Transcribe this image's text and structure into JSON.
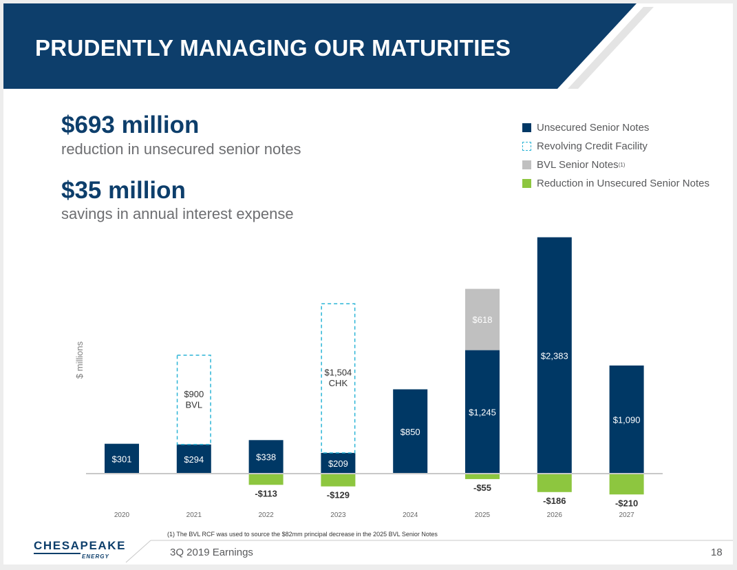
{
  "header": {
    "title": "PRUDENTLY MANAGING OUR MATURITIES"
  },
  "highlights": [
    {
      "value": "$693 million",
      "caption": "reduction in unsecured senior notes"
    },
    {
      "value": "$35 million",
      "caption": "savings in annual interest expense"
    }
  ],
  "legend": [
    {
      "label": "Unsecured Senior Notes",
      "color": "#003865",
      "style": "solid"
    },
    {
      "label": "Revolving Credit Facility",
      "color": "#2ab4d6",
      "style": "dashed"
    },
    {
      "label": "BVL Senior Notes",
      "superscript": "(1)",
      "color": "#c0c0c0",
      "style": "solid"
    },
    {
      "label": "Reduction in Unsecured Senior Notes",
      "color": "#8dc63f",
      "style": "solid"
    }
  ],
  "chart_data": {
    "type": "bar",
    "title": "",
    "ylabel": "$ millions",
    "xlabel": "",
    "ylim": [
      -290,
      2450
    ],
    "categories": [
      "2020",
      "2021",
      "2022",
      "2023",
      "2024",
      "2025",
      "2026",
      "2027"
    ],
    "series": [
      {
        "name": "Unsecured Senior Notes",
        "color": "#003865",
        "values": [
          301,
          294,
          338,
          209,
          850,
          1245,
          2383,
          1090
        ],
        "labels": [
          "$301",
          "$294",
          "$338",
          "$209",
          "$850",
          "$1,245",
          "$2,383",
          "$1,090"
        ]
      },
      {
        "name": "Revolving Credit Facility",
        "color": "#2ab4d6",
        "style": "dashed",
        "values": [
          0,
          900,
          0,
          1504,
          0,
          0,
          0,
          0
        ],
        "labels": [
          "",
          "$900\nBVL",
          "",
          "$1,504\nCHK",
          "",
          "",
          "",
          ""
        ]
      },
      {
        "name": "BVL Senior Notes",
        "color": "#c0c0c0",
        "values": [
          0,
          0,
          0,
          0,
          0,
          618,
          0,
          0
        ],
        "labels": [
          "",
          "",
          "",
          "",
          "",
          "$618",
          "",
          ""
        ]
      },
      {
        "name": "Reduction in Unsecured Senior Notes",
        "color": "#8dc63f",
        "values": [
          0,
          0,
          -113,
          -129,
          0,
          -55,
          -186,
          -210
        ],
        "labels": [
          "",
          "",
          "-$113",
          "-$129",
          "",
          "-$55",
          "-$186",
          "-$210"
        ]
      }
    ]
  },
  "footnote": "(1)  The BVL RCF was used to source the $82mm principal decrease in the 2025 BVL Senior Notes",
  "footer": {
    "company_name": "CHESAPEAKE",
    "company_sub": "ENERGY",
    "event": "3Q 2019 Earnings",
    "page": "18"
  }
}
